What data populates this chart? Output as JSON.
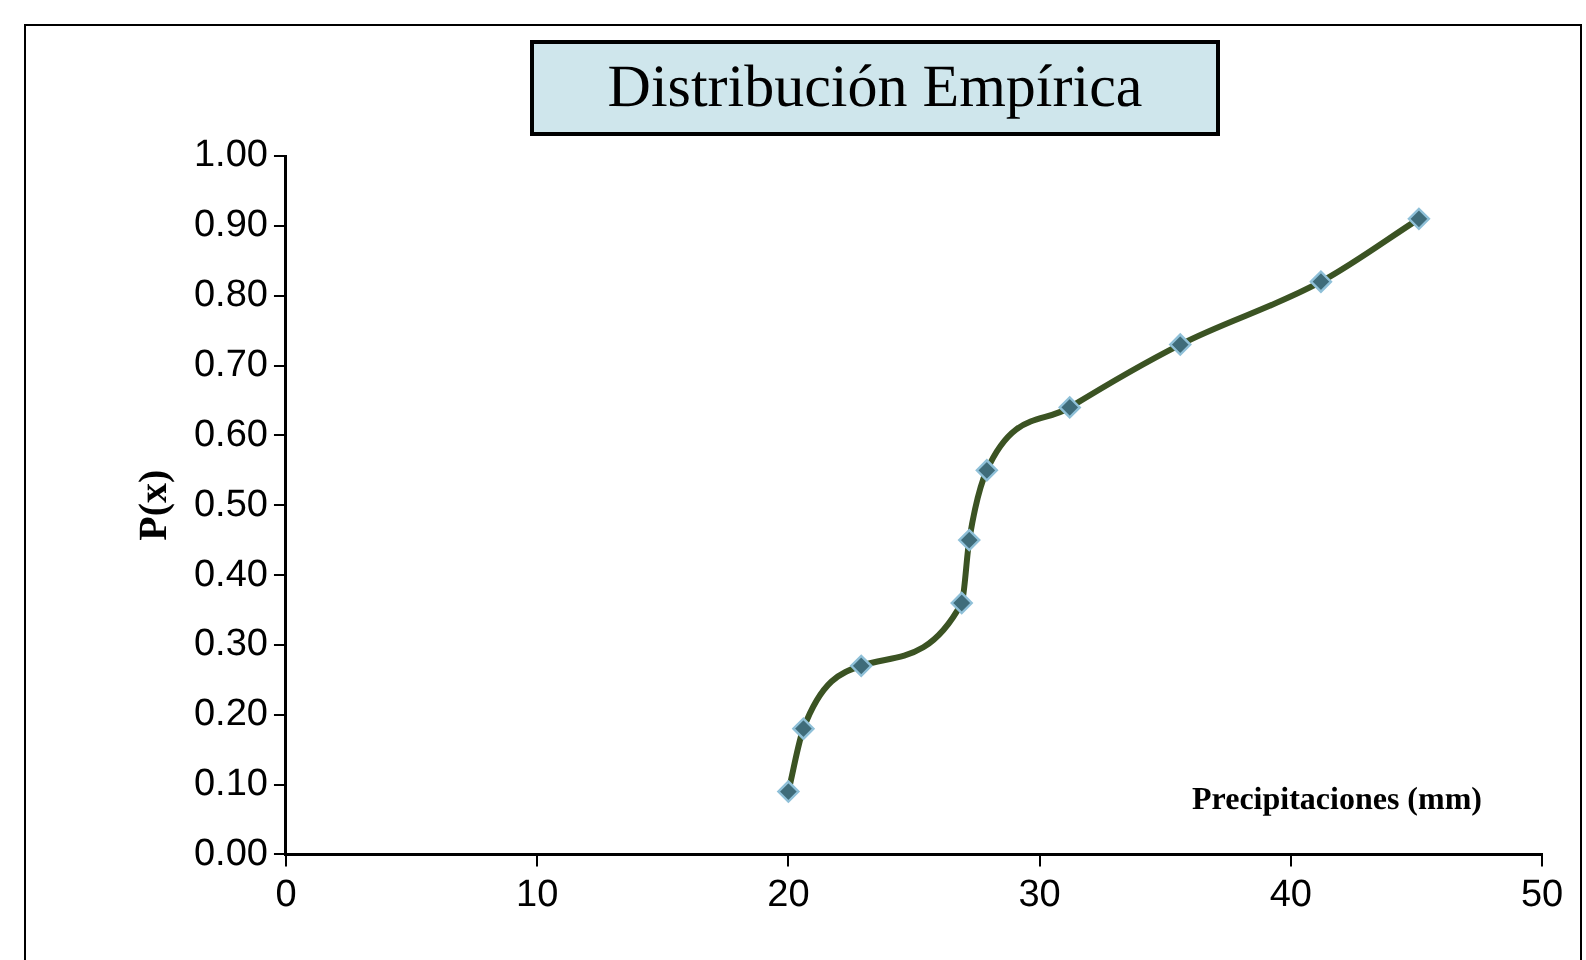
{
  "chart_data": {
    "type": "line",
    "title": "Distribución Empírica",
    "xlabel": "Precipitaciones (mm)",
    "ylabel": "P(x)",
    "x": [
      20,
      20.6,
      22.9,
      26.9,
      27.2,
      27.9,
      31.2,
      35.6,
      41.2,
      45.1
    ],
    "series": [
      {
        "color": "#3b5323",
        "values": [
          0.09,
          0.18,
          0.27,
          0.36,
          0.45,
          0.55,
          0.64,
          0.73,
          0.82,
          0.91
        ]
      }
    ],
    "xlim": [
      0,
      50
    ],
    "xticks": [
      0,
      10,
      20,
      30,
      40,
      50
    ],
    "ylim": [
      0,
      1
    ],
    "yticks": [
      {
        "value": 0,
        "label": "0.00"
      },
      {
        "value": 0.1,
        "label": "0.10"
      },
      {
        "value": 0.2,
        "label": "0.20"
      },
      {
        "value": 0.3,
        "label": "0.30"
      },
      {
        "value": 0.4,
        "label": "0.40"
      },
      {
        "value": 0.5,
        "label": "0.50"
      },
      {
        "value": 0.6,
        "label": "0.60"
      },
      {
        "value": 0.7,
        "label": "0.70"
      },
      {
        "value": 0.8,
        "label": "0.80"
      },
      {
        "value": 0.9,
        "label": "0.90"
      },
      {
        "value": 1,
        "label": "1.00"
      }
    ],
    "grid": false,
    "legend": false,
    "marker": "diamond",
    "line_style": "solid"
  }
}
